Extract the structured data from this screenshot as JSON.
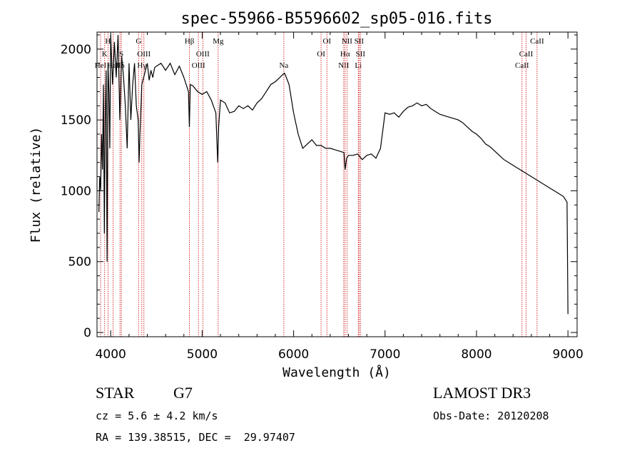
{
  "chart_data": {
    "type": "line",
    "title": "spec-55966-B5596602_sp05-016.fits",
    "xlabel": "Wavelength (Å)",
    "ylabel": "Flux (relative)",
    "xlim": [
      3850,
      9100
    ],
    "ylim": [
      -30,
      2120
    ],
    "xticks": [
      "4000",
      "5000",
      "6000",
      "7000",
      "8000",
      "9000"
    ],
    "xtick_values": [
      4000,
      5000,
      6000,
      7000,
      8000,
      9000
    ],
    "yticks": [
      "0",
      "500",
      "1000",
      "1500",
      "2000"
    ],
    "ytick_values": [
      0,
      500,
      1000,
      1500,
      2000
    ],
    "grid": false,
    "line_color": "#000000",
    "marker_color": "#cc0000",
    "spectrum": {
      "x": [
        3870,
        3880,
        3890,
        3900,
        3910,
        3920,
        3930,
        3940,
        3950,
        3960,
        3970,
        3980,
        3990,
        4000,
        4020,
        4040,
        4060,
        4080,
        4100,
        4120,
        4140,
        4160,
        4180,
        4200,
        4220,
        4240,
        4260,
        4280,
        4300,
        4310,
        4320,
        4340,
        4360,
        4380,
        4400,
        4420,
        4440,
        4460,
        4480,
        4500,
        4550,
        4600,
        4650,
        4700,
        4750,
        4800,
        4850,
        4860,
        4870,
        4900,
        4950,
        5000,
        5050,
        5100,
        5150,
        5170,
        5180,
        5200,
        5250,
        5300,
        5350,
        5400,
        5450,
        5500,
        5550,
        5600,
        5650,
        5700,
        5750,
        5800,
        5850,
        5880,
        5900,
        5920,
        5950,
        6000,
        6050,
        6100,
        6150,
        6200,
        6250,
        6300,
        6350,
        6400,
        6450,
        6500,
        6550,
        6563,
        6580,
        6600,
        6650,
        6700,
        6750,
        6800,
        6850,
        6900,
        6950,
        7000,
        7050,
        7100,
        7150,
        7200,
        7250,
        7300,
        7350,
        7400,
        7450,
        7500,
        7550,
        7600,
        7650,
        7700,
        7750,
        7800,
        7850,
        7900,
        7950,
        8000,
        8050,
        8100,
        8150,
        8200,
        8250,
        8300,
        8350,
        8400,
        8450,
        8500,
        8550,
        8600,
        8650,
        8700,
        8750,
        8800,
        8850,
        8900,
        8950,
        8990,
        9000
      ],
      "y": [
        850,
        1100,
        1000,
        1400,
        1150,
        1750,
        700,
        1500,
        1850,
        500,
        1900,
        1700,
        1300,
        2100,
        1750,
        2050,
        1800,
        2100,
        1500,
        1950,
        1800,
        1600,
        1300,
        1900,
        1500,
        1750,
        1900,
        1600,
        1500,
        1200,
        1400,
        1750,
        1800,
        1850,
        1900,
        1780,
        1850,
        1800,
        1870,
        1880,
        1900,
        1850,
        1900,
        1820,
        1880,
        1800,
        1700,
        1450,
        1750,
        1740,
        1700,
        1680,
        1700,
        1640,
        1550,
        1200,
        1450,
        1640,
        1620,
        1550,
        1560,
        1600,
        1580,
        1600,
        1570,
        1620,
        1650,
        1700,
        1750,
        1770,
        1800,
        1820,
        1830,
        1800,
        1750,
        1550,
        1400,
        1300,
        1330,
        1360,
        1320,
        1320,
        1300,
        1300,
        1290,
        1280,
        1270,
        1150,
        1230,
        1250,
        1250,
        1260,
        1220,
        1250,
        1260,
        1230,
        1300,
        1550,
        1540,
        1550,
        1520,
        1560,
        1590,
        1600,
        1620,
        1600,
        1610,
        1580,
        1560,
        1540,
        1530,
        1520,
        1510,
        1500,
        1480,
        1450,
        1420,
        1400,
        1370,
        1330,
        1310,
        1280,
        1250,
        1220,
        1200,
        1180,
        1160,
        1140,
        1120,
        1100,
        1080,
        1060,
        1040,
        1020,
        1000,
        980,
        960,
        920,
        130
      ]
    },
    "lines": [
      {
        "w": 3889,
        "label": "HeI",
        "row": 2
      },
      {
        "w": 3934,
        "label": "K",
        "row": 1
      },
      {
        "w": 3970,
        "label": "H",
        "row": 0
      },
      {
        "w": 4026,
        "label": "HeI",
        "row": 2
      },
      {
        "w": 4101,
        "label": "Hδ",
        "row": 2
      },
      {
        "w": 4116,
        "label": "S",
        "row": 1
      },
      {
        "w": 4305,
        "label": "G",
        "row": 0
      },
      {
        "w": 4340,
        "label": "Hγ",
        "row": 2
      },
      {
        "w": 4363,
        "label": "OIII",
        "row": 1
      },
      {
        "w": 4861,
        "label": "Hβ",
        "row": 0
      },
      {
        "w": 4959,
        "label": "OIII",
        "row": 2
      },
      {
        "w": 5007,
        "label": "OIII",
        "row": 1
      },
      {
        "w": 5175,
        "label": "Mg",
        "row": 0
      },
      {
        "w": 5893,
        "label": "Na",
        "row": 2
      },
      {
        "w": 6300,
        "label": "OI",
        "row": 1
      },
      {
        "w": 6364,
        "label": "OI",
        "row": 0
      },
      {
        "w": 6548,
        "label": "NII",
        "row": 2
      },
      {
        "w": 6563,
        "label": "Hα",
        "row": 1
      },
      {
        "w": 6583,
        "label": "NII",
        "row": 0
      },
      {
        "w": 6707,
        "label": "Li",
        "row": 2
      },
      {
        "w": 6716,
        "label": "SII",
        "row": 0
      },
      {
        "w": 6731,
        "label": "SII",
        "row": 1
      },
      {
        "w": 8498,
        "label": "CaII",
        "row": 2
      },
      {
        "w": 8542,
        "label": "CaII",
        "row": 1
      },
      {
        "w": 8662,
        "label": "CaII",
        "row": 0
      }
    ]
  },
  "info": {
    "class_label": "STAR",
    "subclass": "G7",
    "cz": "cz = 5.6 ± 4.2 km/s",
    "radec": "RA = 139.38515, DEC =  29.97407",
    "survey": "LAMOST DR3",
    "obs_date": "Obs-Date: 20120208"
  }
}
